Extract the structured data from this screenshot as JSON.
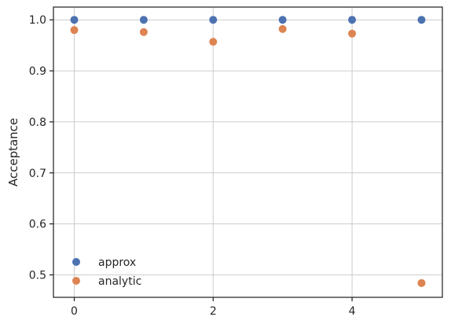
{
  "chart_data": {
    "type": "scatter",
    "title": "",
    "xlabel": "",
    "ylabel": "Acceptance",
    "xlim": [
      -0.3,
      5.3
    ],
    "ylim": [
      0.456,
      1.025
    ],
    "xticks": [
      0,
      2,
      4
    ],
    "yticks": [
      0.5,
      0.6,
      0.7,
      0.8,
      0.9,
      1.0
    ],
    "ytick_labels": [
      "0.5",
      "0.6",
      "0.7",
      "0.8",
      "0.9",
      "1.0"
    ],
    "grid": true,
    "legend": "lower-left",
    "series": [
      {
        "name": "approx",
        "color": "#4c72b0",
        "x": [
          0,
          1,
          2,
          3,
          4,
          5
        ],
        "y": [
          1.0,
          1.0,
          1.0,
          1.0,
          1.0,
          1.0
        ]
      },
      {
        "name": "analytic",
        "color": "#dd8452",
        "x": [
          0,
          1,
          2,
          3,
          4,
          5
        ],
        "y": [
          0.98,
          0.976,
          0.957,
          0.982,
          0.973,
          0.484
        ]
      }
    ]
  }
}
